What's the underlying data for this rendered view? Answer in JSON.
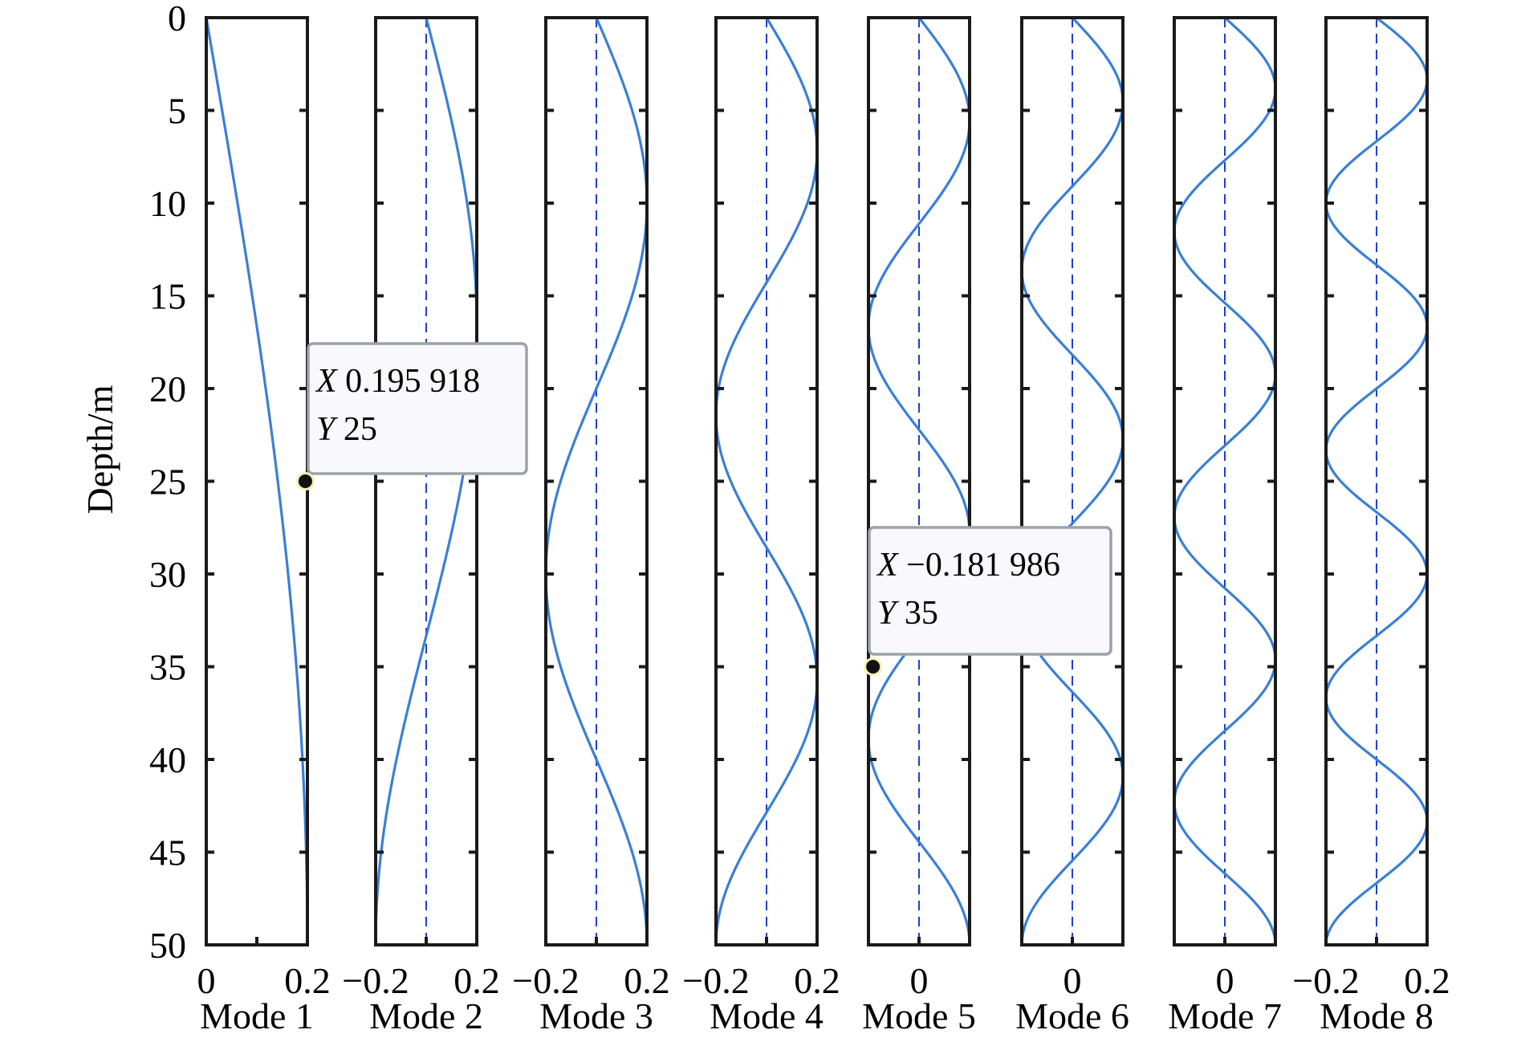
{
  "chart_data": {
    "type": "line",
    "ylabel": "Depth/m",
    "ylim": [
      0,
      50
    ],
    "y_reversed": true,
    "y_ticks": [
      "0",
      "5",
      "10",
      "15",
      "20",
      "25",
      "30",
      "35",
      "40",
      "45",
      "50"
    ],
    "line_color": "#3a7fd5",
    "zero_line_color": "#1f3fcf",
    "panels": [
      {
        "label": "Mode 1",
        "mode": 1,
        "xlim": [
          0,
          0.2
        ],
        "x_ticks": [
          "0",
          "0.2"
        ],
        "tick_values": [
          0,
          0.1,
          0.2
        ]
      },
      {
        "label": "Mode 2",
        "mode": 2,
        "xlim": [
          -0.2,
          0.2
        ],
        "x_ticks": [
          "−0.2",
          "0.2"
        ],
        "tick_values": [
          -0.2,
          0,
          0.2
        ]
      },
      {
        "label": "Mode 3",
        "mode": 3,
        "xlim": [
          -0.2,
          0.2
        ],
        "x_ticks": [
          "−0.2",
          "0.2"
        ],
        "tick_values": [
          -0.2,
          0,
          0.2
        ]
      },
      {
        "label": "Mode 4",
        "mode": 4,
        "xlim": [
          -0.2,
          0.2
        ],
        "x_ticks": [
          "−0.2",
          "0.2"
        ],
        "tick_values": [
          -0.2,
          0,
          0.2
        ]
      },
      {
        "label": "Mode 5",
        "mode": 5,
        "xlim": [
          -0.2,
          0.2
        ],
        "x_ticks": [
          "0"
        ],
        "tick_values": [
          -0.2,
          0,
          0.2
        ]
      },
      {
        "label": "Mode 6",
        "mode": 6,
        "xlim": [
          -0.2,
          0.2
        ],
        "x_ticks": [
          "0"
        ],
        "tick_values": [
          -0.2,
          0,
          0.2
        ]
      },
      {
        "label": "Mode 7",
        "mode": 7,
        "xlim": [
          -0.2,
          0.2
        ],
        "x_ticks": [
          "0"
        ],
        "tick_values": [
          -0.2,
          0,
          0.2
        ]
      },
      {
        "label": "Mode 8",
        "mode": 8,
        "xlim": [
          -0.2,
          0.2
        ],
        "x_ticks": [
          "−0.2",
          "0.2"
        ],
        "tick_values": [
          -0.2,
          0,
          0.2
        ]
      }
    ],
    "amplitude": 0.2,
    "depth_total": 50,
    "datatips": [
      {
        "panel": 1,
        "x": 0.195918,
        "y": 25,
        "x_text": "0.195 918",
        "y_text": "25"
      },
      {
        "panel": 5,
        "x": -0.181986,
        "y": 35,
        "x_text": "−0.181 986",
        "y_text": "35"
      }
    ],
    "datatip_x_key": "X",
    "datatip_y_key": "Y"
  }
}
